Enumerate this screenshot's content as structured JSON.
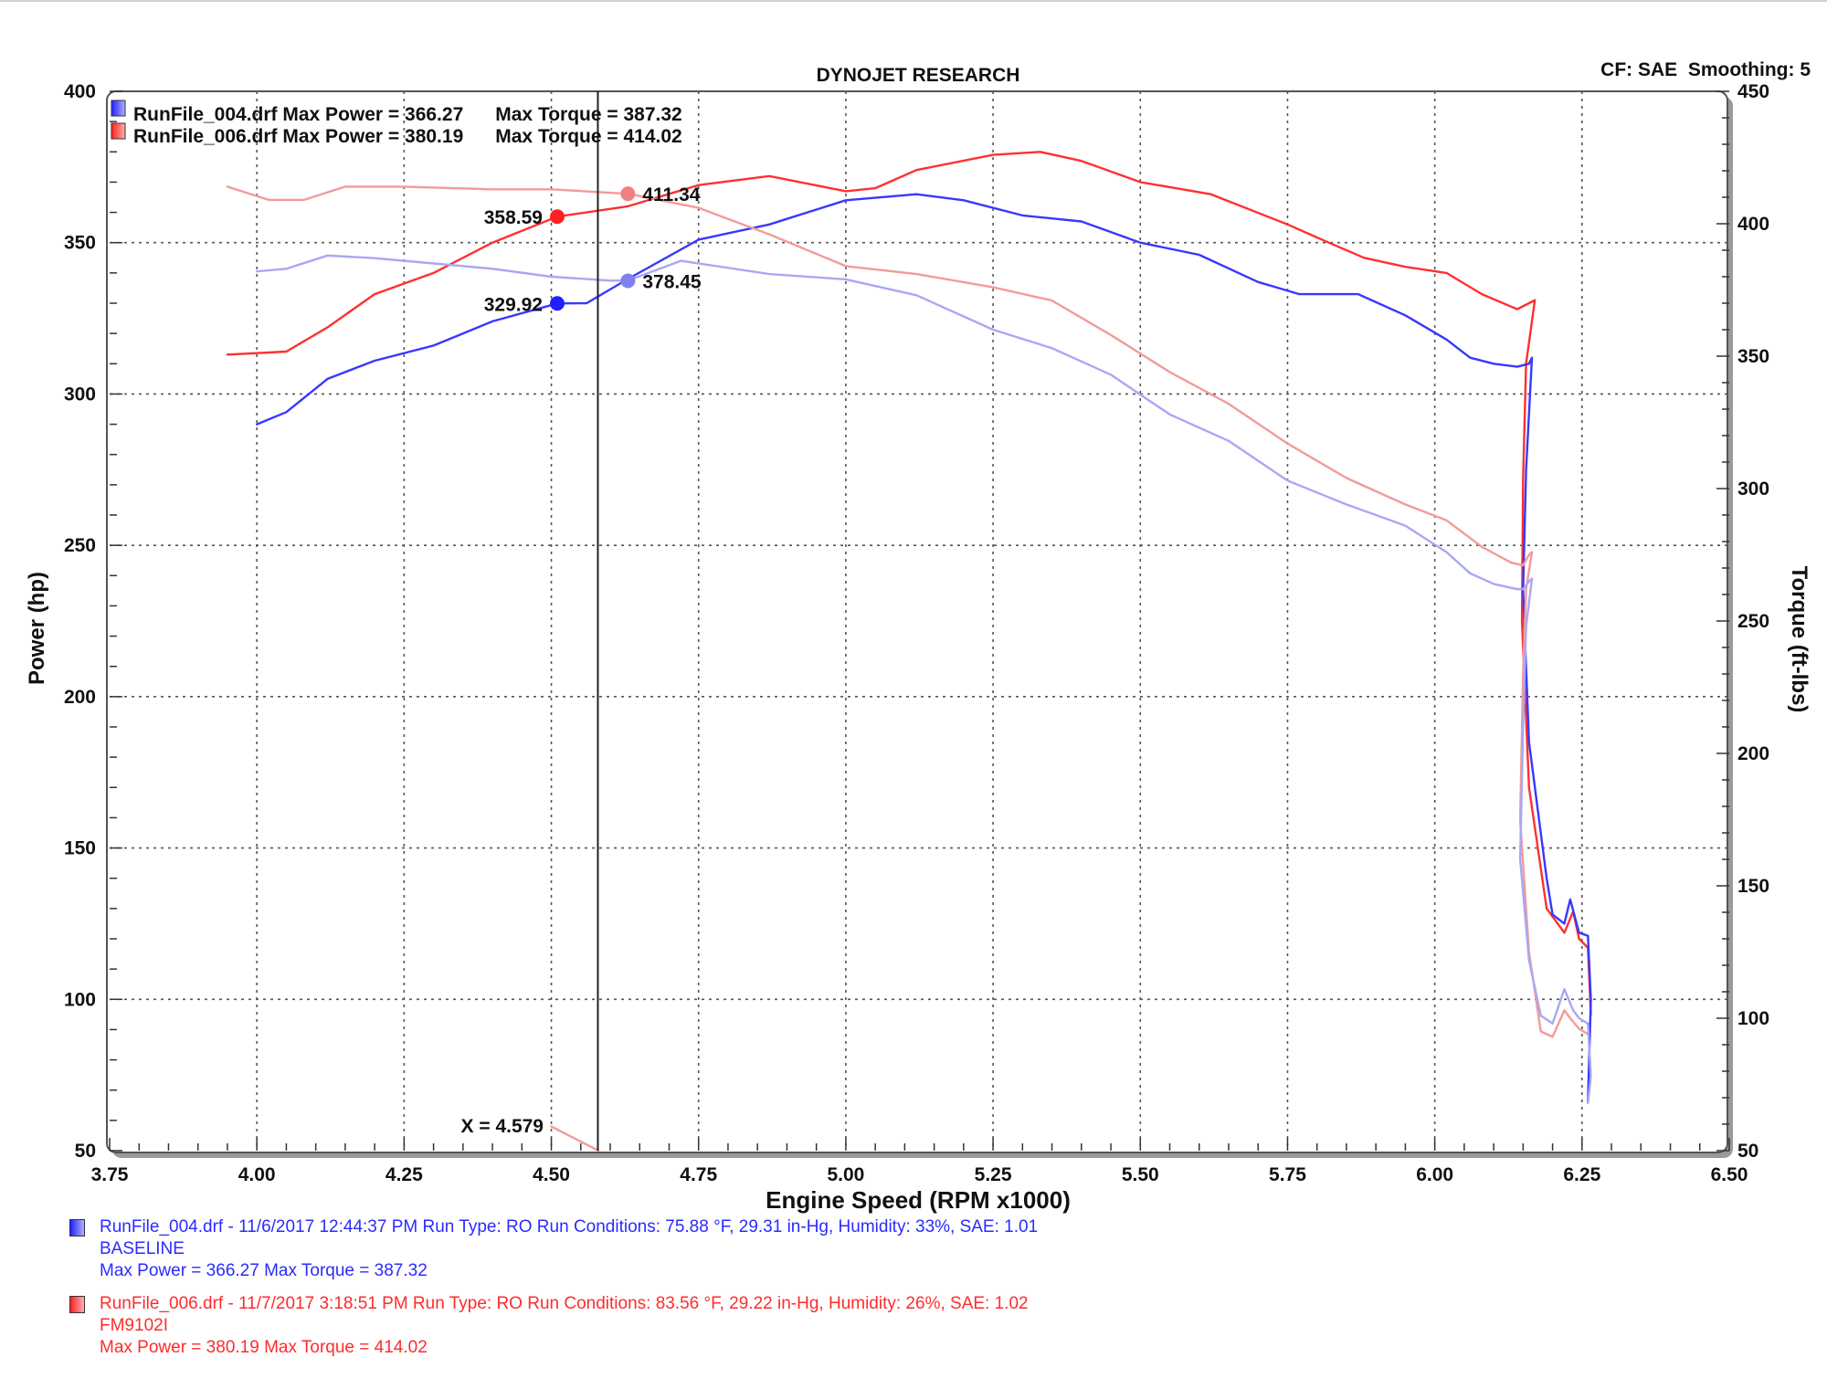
{
  "chart_data": {
    "type": "line",
    "title": "DYNOJET RESEARCH",
    "header_right": "CF: SAE  Smoothing: 5",
    "xlabel": "Engine Speed (RPM x1000)",
    "ylabel_left": "Power (hp)",
    "ylabel_right": "Torque (ft-lbs)",
    "xlim": [
      3.75,
      6.5
    ],
    "ylim_left": [
      50,
      400
    ],
    "ylim_right": [
      50,
      450
    ],
    "x_ticks": [
      "3.75",
      "4.00",
      "4.25",
      "4.50",
      "4.75",
      "5.00",
      "5.25",
      "5.50",
      "5.75",
      "6.00",
      "6.25",
      "6.50"
    ],
    "y_left_ticks": [
      "50",
      "100",
      "150",
      "200",
      "250",
      "300",
      "350",
      "400"
    ],
    "y_right_ticks": [
      "50",
      "100",
      "150",
      "200",
      "250",
      "300",
      "350",
      "400",
      "450"
    ],
    "grid": true,
    "cursor_x": 4.579,
    "cursor_label": "X = 4.579",
    "legend_top": [
      {
        "text": "RunFile_004.drf Max Power = 366.27      Max Torque = 387.32",
        "color": "#2b2bff"
      },
      {
        "text": "RunFile_006.drf Max Power = 380.19      Max Torque = 414.02",
        "color": "#ff2b2b"
      }
    ],
    "markers": [
      {
        "label": "358.59",
        "x": 4.51,
        "y": 358.59,
        "axis": "left",
        "color": "#ff2020",
        "side": "left"
      },
      {
        "label": "329.92",
        "x": 4.51,
        "y": 329.92,
        "axis": "left",
        "color": "#2020ff",
        "side": "left"
      },
      {
        "label": "411.34",
        "x": 4.63,
        "y": 411.34,
        "axis": "right",
        "color": "#f08080",
        "side": "right"
      },
      {
        "label": "378.45",
        "x": 4.63,
        "y": 378.45,
        "axis": "right",
        "color": "#8080f0",
        "side": "right"
      }
    ],
    "series": [
      {
        "name": "RunFile_006.drf Power",
        "axis": "left",
        "color": "#ff3030",
        "points": [
          [
            3.95,
            313
          ],
          [
            4.05,
            314
          ],
          [
            4.12,
            322
          ],
          [
            4.2,
            333
          ],
          [
            4.3,
            340
          ],
          [
            4.4,
            350
          ],
          [
            4.51,
            358.6
          ],
          [
            4.63,
            362
          ],
          [
            4.75,
            369
          ],
          [
            4.87,
            372
          ],
          [
            5.0,
            367
          ],
          [
            5.05,
            368
          ],
          [
            5.12,
            374
          ],
          [
            5.25,
            379
          ],
          [
            5.33,
            380
          ],
          [
            5.4,
            377
          ],
          [
            5.5,
            370
          ],
          [
            5.62,
            366
          ],
          [
            5.75,
            356
          ],
          [
            5.82,
            350
          ],
          [
            5.88,
            345
          ],
          [
            5.95,
            342
          ],
          [
            6.02,
            340
          ],
          [
            6.08,
            333
          ],
          [
            6.14,
            328
          ],
          [
            6.16,
            330
          ],
          [
            6.17,
            331
          ],
          [
            6.155,
            310
          ],
          [
            6.15,
            272
          ],
          [
            6.148,
            225
          ],
          [
            6.16,
            170
          ],
          [
            6.19,
            130
          ],
          [
            6.22,
            122
          ],
          [
            6.235,
            129
          ],
          [
            6.245,
            120
          ],
          [
            6.26,
            117
          ],
          [
            6.265,
            95
          ]
        ]
      },
      {
        "name": "RunFile_004.drf Power",
        "axis": "left",
        "color": "#3838ff",
        "points": [
          [
            4.0,
            290
          ],
          [
            4.05,
            294
          ],
          [
            4.12,
            305
          ],
          [
            4.2,
            311
          ],
          [
            4.3,
            316
          ],
          [
            4.4,
            324
          ],
          [
            4.51,
            329.9
          ],
          [
            4.56,
            330
          ],
          [
            4.63,
            338
          ],
          [
            4.75,
            351
          ],
          [
            4.87,
            356
          ],
          [
            5.0,
            364
          ],
          [
            5.12,
            366
          ],
          [
            5.2,
            364
          ],
          [
            5.3,
            359
          ],
          [
            5.4,
            357
          ],
          [
            5.5,
            350
          ],
          [
            5.6,
            346
          ],
          [
            5.7,
            337
          ],
          [
            5.77,
            333
          ],
          [
            5.87,
            333
          ],
          [
            5.95,
            326
          ],
          [
            6.02,
            318
          ],
          [
            6.06,
            312
          ],
          [
            6.1,
            310
          ],
          [
            6.14,
            309
          ],
          [
            6.16,
            310
          ],
          [
            6.165,
            312
          ],
          [
            6.155,
            275
          ],
          [
            6.15,
            235
          ],
          [
            6.16,
            185
          ],
          [
            6.19,
            140
          ],
          [
            6.2,
            128
          ],
          [
            6.22,
            125
          ],
          [
            6.23,
            133
          ],
          [
            6.245,
            122
          ],
          [
            6.26,
            121
          ],
          [
            6.265,
            100
          ],
          [
            6.26,
            66
          ]
        ]
      },
      {
        "name": "RunFile_006.drf Torque",
        "axis": "right",
        "color": "#f49a9a",
        "points": [
          [
            3.95,
            414
          ],
          [
            4.02,
            409
          ],
          [
            4.08,
            409
          ],
          [
            4.15,
            414
          ],
          [
            4.25,
            414
          ],
          [
            4.4,
            413
          ],
          [
            4.5,
            413
          ],
          [
            4.63,
            411.3
          ],
          [
            4.75,
            406
          ],
          [
            4.87,
            396
          ],
          [
            5.0,
            384
          ],
          [
            5.12,
            381
          ],
          [
            5.25,
            376
          ],
          [
            5.35,
            371
          ],
          [
            5.45,
            358
          ],
          [
            5.55,
            344
          ],
          [
            5.65,
            332
          ],
          [
            5.75,
            317
          ],
          [
            5.85,
            304
          ],
          [
            5.95,
            294
          ],
          [
            6.02,
            288
          ],
          [
            6.08,
            278
          ],
          [
            6.13,
            272
          ],
          [
            6.15,
            271
          ],
          [
            6.16,
            275
          ],
          [
            6.165,
            276
          ],
          [
            6.155,
            262
          ],
          [
            6.15,
            230
          ],
          [
            6.145,
            175
          ],
          [
            6.16,
            125
          ],
          [
            6.18,
            95
          ],
          [
            6.2,
            93
          ],
          [
            6.22,
            103
          ],
          [
            6.23,
            100
          ],
          [
            6.245,
            96
          ],
          [
            6.26,
            94
          ]
        ]
      },
      {
        "name": "RunFile_004.drf Torque",
        "axis": "right",
        "color": "#a8a8f4",
        "points": [
          [
            4.0,
            382
          ],
          [
            4.05,
            383
          ],
          [
            4.12,
            388
          ],
          [
            4.2,
            387
          ],
          [
            4.3,
            385
          ],
          [
            4.4,
            383
          ],
          [
            4.5,
            380
          ],
          [
            4.6,
            378.5
          ],
          [
            4.63,
            378.5
          ],
          [
            4.72,
            386
          ],
          [
            4.87,
            381
          ],
          [
            5.0,
            379
          ],
          [
            5.12,
            373
          ],
          [
            5.25,
            360
          ],
          [
            5.35,
            353
          ],
          [
            5.45,
            343
          ],
          [
            5.55,
            328
          ],
          [
            5.65,
            318
          ],
          [
            5.75,
            303
          ],
          [
            5.85,
            294
          ],
          [
            5.95,
            286
          ],
          [
            6.02,
            276
          ],
          [
            6.06,
            268
          ],
          [
            6.1,
            264
          ],
          [
            6.14,
            262
          ],
          [
            6.15,
            262
          ],
          [
            6.16,
            265
          ],
          [
            6.165,
            266
          ],
          [
            6.155,
            248
          ],
          [
            6.15,
            210
          ],
          [
            6.145,
            160
          ],
          [
            6.16,
            122
          ],
          [
            6.18,
            101
          ],
          [
            6.2,
            98
          ],
          [
            6.22,
            111
          ],
          [
            6.235,
            103
          ],
          [
            6.245,
            100
          ],
          [
            6.26,
            98
          ],
          [
            6.265,
            78
          ],
          [
            6.26,
            68
          ]
        ]
      },
      {
        "name": "Cursor trace",
        "axis": "left",
        "color": "#f49a9a",
        "points": [
          [
            4.5,
            58
          ],
          [
            4.55,
            53
          ],
          [
            4.58,
            50
          ]
        ]
      }
    ],
    "bottom_legend": [
      {
        "color": "#2b2bff",
        "lines": [
          "RunFile_004.drf - 11/6/2017 12:44:37 PM  Run Type: RO  Run Conditions: 75.88 °F, 29.31 in-Hg,  Humidity:  33%, SAE: 1.01",
          "BASELINE",
          "Max Power = 366.27  Max Torque = 387.32"
        ]
      },
      {
        "color": "#ff2b2b",
        "lines": [
          "RunFile_006.drf - 11/7/2017 3:18:51 PM  Run Type: RO  Run Conditions: 83.56 °F, 29.22 in-Hg,  Humidity:  26%, SAE: 1.02",
          "FM9102I",
          "Max Power = 380.19  Max Torque = 414.02"
        ]
      }
    ]
  }
}
